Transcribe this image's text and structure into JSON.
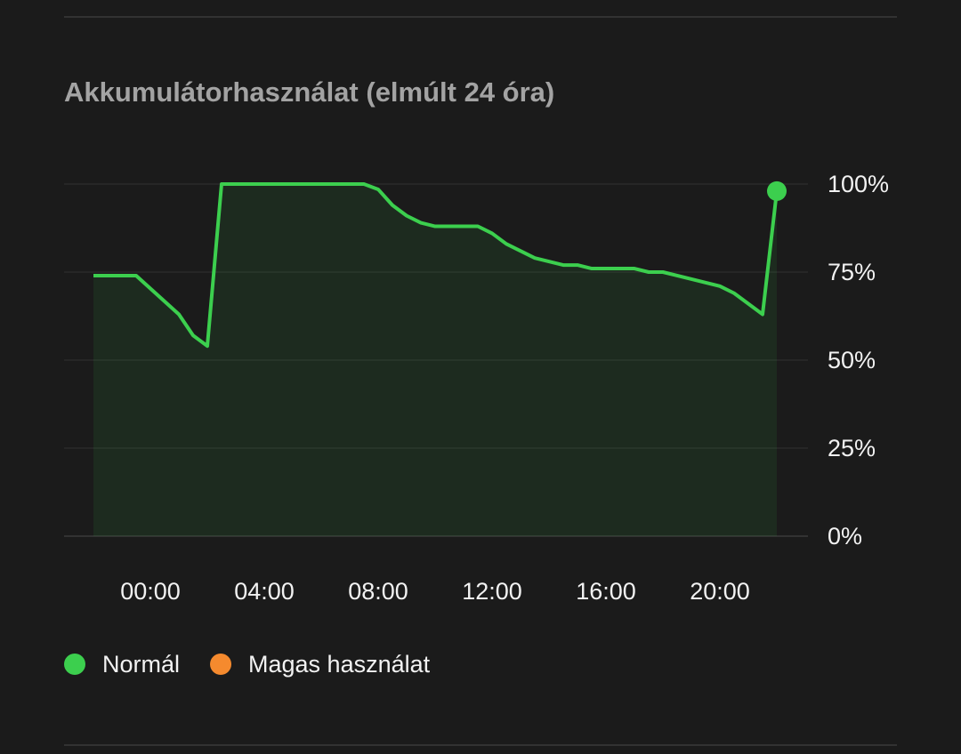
{
  "chart_data": {
    "type": "line",
    "title": "Akkumulátorhasználat (elmúlt 24 óra)",
    "x": [
      -2,
      -0.5,
      1,
      1.5,
      2,
      2.5,
      7.5,
      8,
      8.5,
      9,
      9.5,
      10,
      11.5,
      12,
      12.5,
      13.5,
      14.5,
      15,
      15.5,
      17,
      17.5,
      18,
      18.5,
      20,
      20.5,
      21.5,
      22
    ],
    "series": [
      {
        "name": "Normál",
        "color": "#3ccf4e",
        "values": [
          74,
          74,
          63,
          57,
          54,
          100,
          100,
          98.5,
          94,
          91,
          89,
          88,
          88,
          86,
          83,
          79,
          77,
          77,
          76,
          76,
          75,
          75,
          74,
          71,
          69,
          63,
          98
        ]
      },
      {
        "name": "Magas használat",
        "color": "#f58a2e",
        "values": [
          null,
          null,
          null,
          null,
          null,
          null,
          null,
          null,
          null,
          null,
          null,
          null,
          null,
          null,
          null,
          null,
          null,
          null,
          null,
          null,
          null,
          null,
          null,
          null,
          null,
          null,
          null
        ]
      }
    ],
    "xlim": [
      -3,
      23
    ],
    "xticks": [
      {
        "value": 0,
        "label": "00:00"
      },
      {
        "value": 4,
        "label": "04:00"
      },
      {
        "value": 8,
        "label": "08:00"
      },
      {
        "value": 12,
        "label": "12:00"
      },
      {
        "value": 16,
        "label": "16:00"
      },
      {
        "value": 20,
        "label": "20:00"
      }
    ],
    "ylim": [
      0,
      100
    ],
    "yticks": [
      {
        "value": 0,
        "label": "0%"
      },
      {
        "value": 25,
        "label": "25%"
      },
      {
        "value": 50,
        "label": "50%"
      },
      {
        "value": 75,
        "label": "75%"
      },
      {
        "value": 100,
        "label": "100%"
      }
    ],
    "grid": true
  }
}
